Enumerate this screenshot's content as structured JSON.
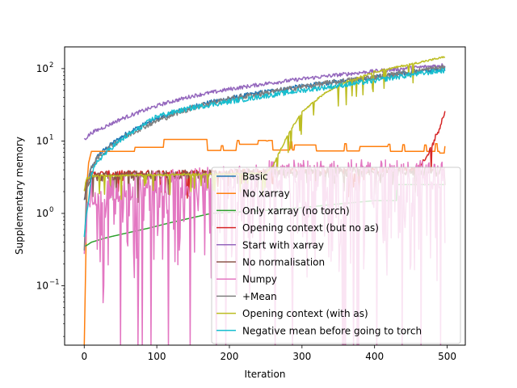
{
  "chart_data": {
    "type": "line",
    "title": "",
    "xlabel": "Iteration",
    "ylabel": "Supplementary memory",
    "xlim": [
      -27,
      525
    ],
    "ylim_log10": [
      -1.82,
      2.3
    ],
    "yscale": "log",
    "grid": false,
    "legend_position": "lower-right",
    "x_ticks": [
      0,
      100,
      200,
      300,
      400,
      500
    ],
    "x_tick_labels": [
      "0",
      "100",
      "200",
      "300",
      "400",
      "500"
    ],
    "y_ticks": [
      0.1,
      1,
      10,
      100
    ],
    "y_tick_labels": [
      "10",
      "10",
      "10",
      "10"
    ],
    "y_tick_exponents": [
      "−1",
      "0",
      "1",
      "2"
    ],
    "series": [
      {
        "name": "Basic",
        "color": "#1f77b4",
        "kind": "grow",
        "x": [
          0,
          3,
          10,
          20,
          40,
          60,
          80,
          100,
          130,
          160,
          200,
          250,
          300,
          350,
          400,
          450,
          497
        ],
        "y": [
          1.5,
          2.4,
          4.2,
          6.5,
          9.5,
          13,
          16.5,
          20,
          26,
          32,
          39,
          48,
          57,
          66,
          76,
          88,
          100
        ],
        "noise": 0.07,
        "floor": null
      },
      {
        "name": "No xarray",
        "color": "#ff7f0e",
        "kind": "step",
        "x": [
          0,
          2,
          4,
          6,
          10,
          70,
          110,
          170,
          210,
          240,
          260,
          290,
          320,
          350,
          380,
          420,
          450,
          490,
          497
        ],
        "y": [
          0.015,
          0.2,
          2.8,
          5.0,
          7.2,
          8.2,
          10.5,
          7.4,
          9.0,
          10.2,
          7.5,
          8.8,
          7.3,
          7.3,
          8.4,
          7.2,
          7.2,
          6.8,
          8.5
        ],
        "spikes": [
          [
            190,
            8.6
          ],
          [
            212,
            10.2
          ],
          [
            252,
            10.0
          ],
          [
            285,
            9.8
          ],
          [
            360,
            9.2
          ],
          [
            420,
            9.0
          ],
          [
            440,
            8.9
          ],
          [
            470,
            8.8
          ],
          [
            485,
            9.2
          ]
        ]
      },
      {
        "name": "Only xarray (no torch)",
        "color": "#2ca02c",
        "kind": "grow",
        "x": [
          0,
          3,
          10,
          30,
          60,
          90,
          120,
          175,
          250,
          300,
          350,
          400,
          430,
          431,
          497
        ],
        "y": [
          0.35,
          0.36,
          0.4,
          0.46,
          0.54,
          0.63,
          0.75,
          1.0,
          1.1,
          1.2,
          1.35,
          1.5,
          1.5,
          2.5,
          2.5
        ],
        "noise": 0.0,
        "floor": null
      },
      {
        "name": "Opening context (but no as)",
        "color": "#d62728",
        "kind": "noisy",
        "x": [
          0,
          3,
          10,
          100,
          200,
          300,
          400,
          460,
          470,
          480,
          490,
          497
        ],
        "y": [
          2.0,
          3.0,
          3.5,
          3.6,
          3.7,
          3.8,
          3.9,
          4.0,
          5.5,
          9.0,
          16.0,
          25.0
        ],
        "noise": 0.1,
        "floor": 0.8
      },
      {
        "name": "Start with xarray",
        "color": "#9467bd",
        "kind": "grow",
        "x": [
          0,
          10,
          30,
          50,
          80,
          110,
          150,
          200,
          250,
          300,
          350,
          400,
          450,
          497
        ],
        "y": [
          10.5,
          13,
          16,
          20,
          26,
          33,
          42,
          52,
          62,
          72,
          82,
          92,
          102,
          112
        ],
        "noise": 0.06,
        "floor": null
      },
      {
        "name": "No normalisation",
        "color": "#8c564b",
        "kind": "noisy",
        "x": [
          0,
          3,
          10,
          100,
          200,
          300,
          400,
          497
        ],
        "y": [
          1.5,
          2.5,
          3.2,
          3.4,
          3.5,
          3.6,
          3.7,
          3.8
        ],
        "noise": 0.15,
        "floor": 1.0
      },
      {
        "name": "Numpy",
        "color": "#e377c2",
        "kind": "numpy",
        "x": [
          0,
          3,
          10,
          100,
          200,
          300,
          400,
          497
        ],
        "y": [
          0.2,
          0.8,
          2.0,
          2.6,
          2.9,
          3.1,
          3.3,
          3.4
        ],
        "noise": 0.45,
        "floor": 0.01
      },
      {
        "name": "+Mean",
        "color": "#7f7f7f",
        "kind": "grow",
        "x": [
          0,
          3,
          10,
          20,
          40,
          60,
          80,
          100,
          130,
          160,
          200,
          250,
          300,
          350,
          400,
          450,
          497
        ],
        "y": [
          0.3,
          2.0,
          4.5,
          6.0,
          9.0,
          12,
          15.5,
          19,
          25,
          31,
          38,
          46,
          56,
          66,
          76,
          90,
          105
        ],
        "noise": 0.09,
        "floor": null
      },
      {
        "name": "Opening context (with as)",
        "color": "#bcbd22",
        "kind": "noisy",
        "x": [
          0,
          3,
          10,
          100,
          200,
          250,
          260,
          280,
          300,
          330,
          360,
          400,
          450,
          497
        ],
        "y": [
          2.0,
          3.0,
          3.3,
          3.4,
          3.5,
          3.6,
          4.5,
          12,
          25,
          45,
          65,
          90,
          115,
          145
        ],
        "noise": 0.03,
        "floor": 1.0
      },
      {
        "name": "Negative mean before going to torch",
        "color": "#17becf",
        "kind": "grow",
        "x": [
          0,
          3,
          10,
          20,
          40,
          60,
          80,
          100,
          150,
          200,
          250,
          300,
          350,
          400,
          450,
          497
        ],
        "y": [
          0.5,
          0.9,
          3.5,
          5.5,
          8.5,
          12,
          16,
          22,
          29,
          35,
          42,
          50,
          58,
          68,
          82,
          95
        ],
        "noise": 0.08,
        "floor": null
      }
    ]
  }
}
